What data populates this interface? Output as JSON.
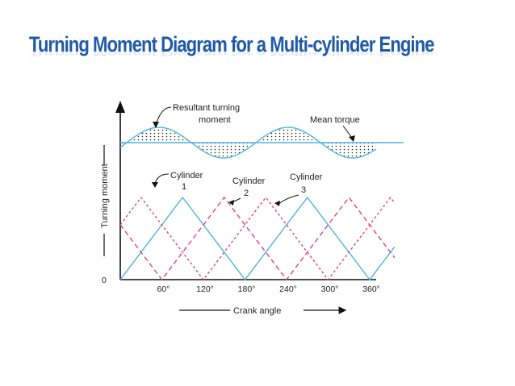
{
  "slide": {
    "title": "Turning Moment Diagram for a Multi-cylinder Engine"
  },
  "diagram": {
    "y_axis_label": "Turning moment",
    "x_axis_label": "Crank angle",
    "origin_label": "0",
    "x_ticks": [
      "60°",
      "120°",
      "180°",
      "240°",
      "300°",
      "360°"
    ],
    "annotations": {
      "resultant_line1": "Resultant turning",
      "resultant_line2": "moment",
      "mean_torque": "Mean torque",
      "cyl1_name": "Cylinder",
      "cyl1_num": "1",
      "cyl2_name": "Cylinder",
      "cyl2_num": "2",
      "cyl3_name": "Cylinder",
      "cyl3_num": "3"
    },
    "colors": {
      "cylinder_1": "#4fb3e0",
      "cylinder_2": "#e0407f",
      "cylinder_3": "#4fb3e0",
      "resultant": "#4fb3e0",
      "mean_torque": "#4fb3e0",
      "axes": "#111111",
      "title": "#1f5aa8"
    }
  }
}
